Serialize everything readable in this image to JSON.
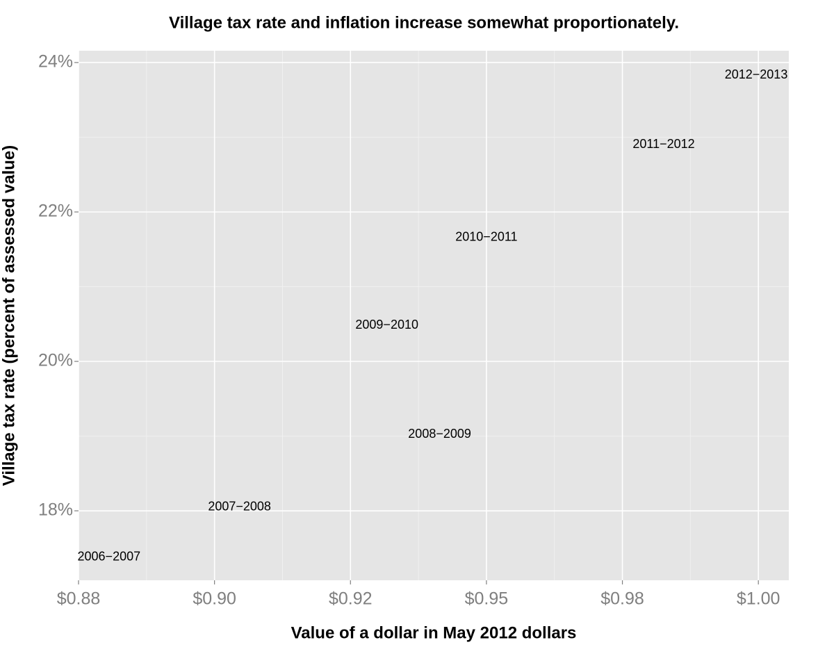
{
  "chart_data": {
    "type": "text",
    "title": "Village tax rate and inflation increase somewhat proportionately.",
    "x_label": "Value of a dollar in May 2012 dollars",
    "y_label": "Village tax rate (percent of assessed value)",
    "labels": [
      "2006−2007",
      "2007−2008",
      "2008−2009",
      "2009−2010",
      "2010−2011",
      "2011−2012",
      "2012−2013"
    ],
    "x": [
      0.8806,
      0.9046,
      0.9414,
      0.9317,
      0.95,
      0.9826,
      0.9996
    ],
    "values": [
      17.38,
      18.05,
      19.02,
      20.48,
      21.66,
      22.9,
      23.83
    ],
    "xlim": [
      0.875,
      1.0056
    ],
    "ylim": [
      17.07,
      24.158
    ],
    "xticks": [
      {
        "value": 0.875,
        "label": "$0.88"
      },
      {
        "value": 0.9,
        "label": "$0.90"
      },
      {
        "value": 0.925,
        "label": "$0.92"
      },
      {
        "value": 0.95,
        "label": "$0.95"
      },
      {
        "value": 0.975,
        "label": "$0.98"
      },
      {
        "value": 1.0,
        "label": "$1.00"
      }
    ],
    "yticks": [
      {
        "value": 18,
        "label": "18%"
      },
      {
        "value": 20,
        "label": "20%"
      },
      {
        "value": 22,
        "label": "22%"
      },
      {
        "value": 24,
        "label": "24%"
      }
    ],
    "grid": true,
    "color": "#000000"
  }
}
